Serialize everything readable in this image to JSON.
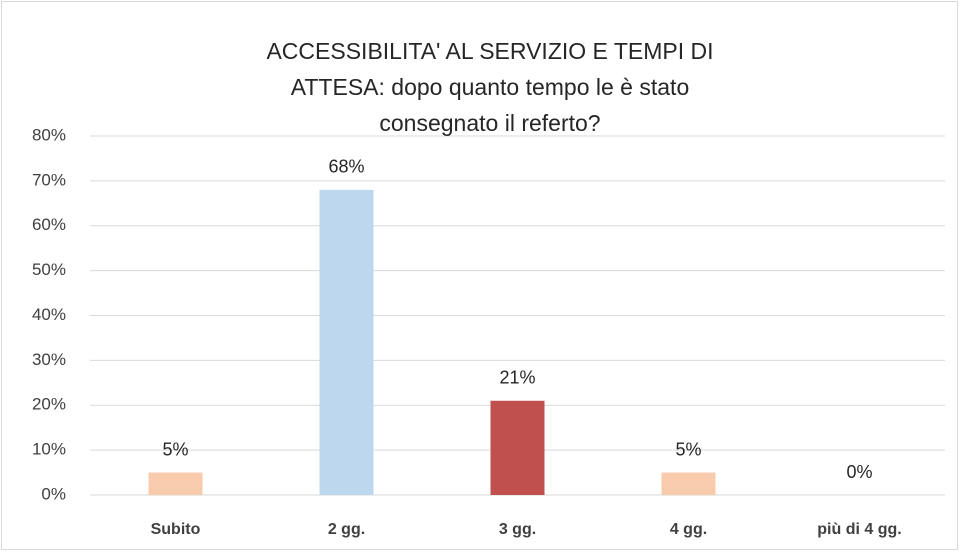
{
  "chart_data": {
    "type": "bar",
    "title": "ACCESSIBILITA' AL SERVIZIO E TEMPI DI ATTESA: dopo quanto tempo le è stato consegnato il referto?",
    "categories": [
      "Subito",
      "2 gg.",
      "3 gg.",
      "4 gg.",
      "più di 4 gg."
    ],
    "values": [
      5,
      68,
      21,
      5,
      0
    ],
    "value_labels": [
      "5%",
      "68%",
      "21%",
      "5%",
      "0%"
    ],
    "colors": [
      "#f8cbad",
      "#bdd7ee",
      "#c0504d",
      "#f8cbad",
      "#f8cbad"
    ],
    "ylim": [
      0,
      80
    ],
    "yticks": [
      {
        "value": 0,
        "label": "0%"
      },
      {
        "value": 10,
        "label": "10%"
      },
      {
        "value": 20,
        "label": "20%"
      },
      {
        "value": 30,
        "label": "30%"
      },
      {
        "value": 40,
        "label": "40%"
      },
      {
        "value": 50,
        "label": "50%"
      },
      {
        "value": 60,
        "label": "60%"
      },
      {
        "value": 70,
        "label": "70%"
      },
      {
        "value": 80,
        "label": "80%"
      }
    ],
    "grid": true
  }
}
